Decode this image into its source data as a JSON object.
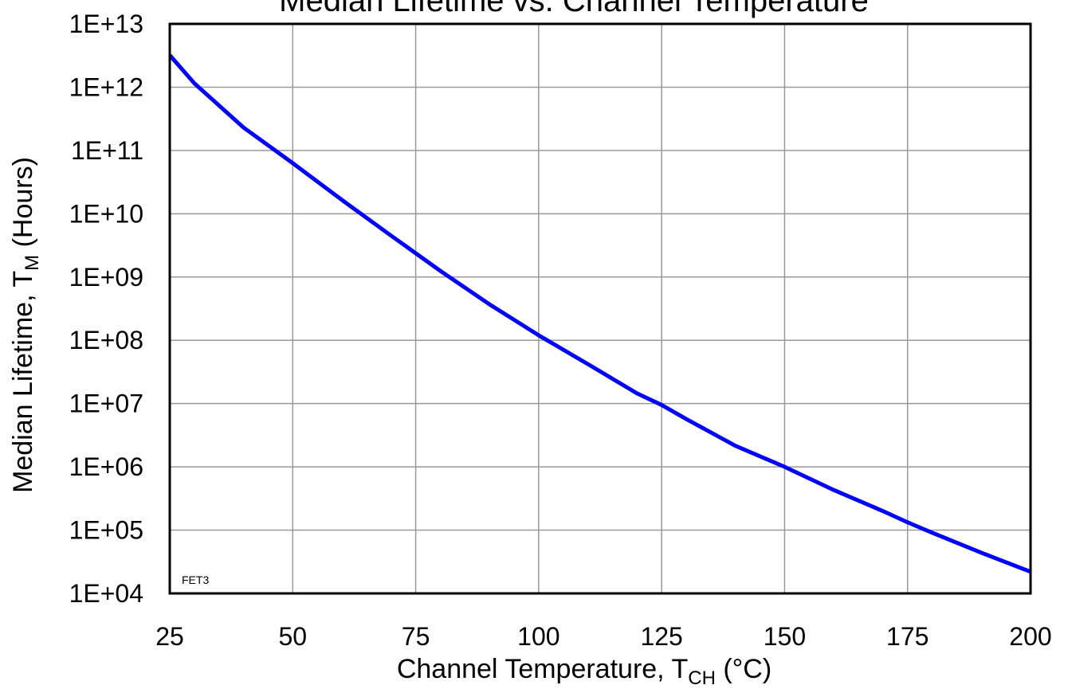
{
  "chart_data": {
    "type": "line",
    "title": "Median Lifetime vs. Channel Temperature",
    "xlabel": {
      "main": "Channel Temperature, T",
      "sub": "CH",
      "suffix": " (°C)"
    },
    "ylabel": {
      "main": "Median Lifetime, T",
      "sub": "M",
      "suffix": "  (Hours)"
    },
    "annotation": "FET3",
    "x_scale": "linear",
    "y_scale": "log",
    "xlim": [
      25,
      200
    ],
    "ylim": [
      10000,
      10000000000000
    ],
    "x_ticks": [
      25,
      50,
      75,
      100,
      125,
      150,
      175,
      200
    ],
    "x_tick_labels": [
      "25",
      "50",
      "75",
      "100",
      "125",
      "150",
      "175",
      "200"
    ],
    "y_ticks": [
      10000,
      100000,
      1000000,
      10000000,
      100000000,
      1000000000,
      10000000000,
      100000000000,
      1000000000000,
      10000000000000
    ],
    "y_tick_labels": [
      "1E+04",
      "1E+05",
      "1E+06",
      "1E+07",
      "1E+08",
      "1E+09",
      "1E+10",
      "1E+11",
      "1E+12",
      "1E+13"
    ],
    "grid": true,
    "series": [
      {
        "color": "#0000ff",
        "x": [
          25,
          30,
          40,
          50,
          60,
          70,
          80,
          90,
          100,
          110,
          120,
          125,
          130,
          140,
          150,
          160,
          170,
          175,
          180,
          190,
          200
        ],
        "y": [
          3200000000000,
          1150000000000,
          230000000000,
          63000000000,
          16500000000,
          4500000000,
          1250000000,
          370000000,
          120000000,
          42000000,
          14500000,
          9500000,
          5700000,
          2150000,
          1000000,
          430000,
          200000,
          133000,
          91000,
          44000,
          22000
        ]
      }
    ]
  }
}
